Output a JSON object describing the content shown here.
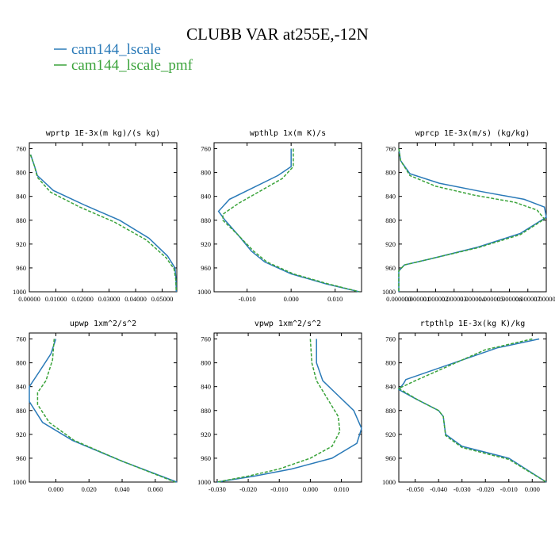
{
  "title": "CLUBB VAR at255E,-12N",
  "legend": [
    {
      "name": "cam144_lscale",
      "color": "#2a7ab8"
    },
    {
      "name": "cam144_lscale_pmf",
      "color": "#3aa33a"
    }
  ],
  "chart_data": [
    {
      "type": "line",
      "title": "wprtp  1E-3x(m kg)/(s kg)",
      "xlim": [
        0,
        0.0555
      ],
      "ylim": [
        1000,
        750
      ],
      "yticks": [
        "760",
        "800",
        "840",
        "880",
        "920",
        "960",
        "1000"
      ],
      "xticks": [
        {
          "v": 0.0,
          "label": "0.00000"
        },
        {
          "v": 0.01,
          "label": "0.01000"
        },
        {
          "v": 0.02,
          "label": "0.02000"
        },
        {
          "v": 0.03,
          "label": "0.03000"
        },
        {
          "v": 0.04,
          "label": "0.04000"
        },
        {
          "v": 0.05,
          "label": "0.05000"
        }
      ],
      "series": [
        {
          "name": "cam144_lscale",
          "x": [
            0.0005,
            0.002,
            0.003,
            0.009,
            0.021,
            0.034,
            0.045,
            0.052,
            0.0548,
            0.0552,
            0.0553
          ],
          "y": [
            770,
            790,
            805,
            830,
            855,
            880,
            910,
            940,
            960,
            980,
            1000
          ]
        },
        {
          "name": "cam144_lscale_pmf",
          "x": [
            0.0004,
            0.002,
            0.003,
            0.008,
            0.019,
            0.032,
            0.044,
            0.0515,
            0.0545,
            0.0551,
            0.0553
          ],
          "y": [
            770,
            790,
            808,
            833,
            858,
            883,
            913,
            943,
            962,
            980,
            1000
          ]
        }
      ]
    },
    {
      "type": "line",
      "title": "wpthlp  1x(m K)/s",
      "xlim": [
        -0.0175,
        0.016
      ],
      "ylim": [
        1000,
        750
      ],
      "yticks": [
        "760",
        "800",
        "840",
        "880",
        "920",
        "960",
        "1000"
      ],
      "xticks": [
        {
          "v": -0.01,
          "label": "-0.010"
        },
        {
          "v": 0.0,
          "label": "0.000"
        },
        {
          "v": 0.01,
          "label": "0.010"
        }
      ],
      "series": [
        {
          "name": "cam144_lscale",
          "x": [
            0.0,
            0.0,
            -0.003,
            -0.014,
            -0.0165,
            -0.015,
            -0.012,
            -0.009,
            -0.006,
            0.0,
            0.008,
            0.0155
          ],
          "y": [
            760,
            790,
            805,
            845,
            865,
            880,
            905,
            932,
            950,
            970,
            987,
            1000
          ]
        },
        {
          "name": "cam144_lscale_pmf",
          "x": [
            0.0005,
            0.0005,
            -0.002,
            -0.012,
            -0.0155,
            -0.0155,
            -0.012,
            -0.0085,
            -0.0055,
            0.0005,
            0.0085,
            0.0155
          ],
          "y": [
            760,
            790,
            810,
            852,
            870,
            880,
            905,
            932,
            950,
            970,
            987,
            1000
          ]
        }
      ]
    },
    {
      "type": "line",
      "title": "wprcp  1E-3x(m/s) (kg/kg)",
      "xlim": [
        0,
        8e-06
      ],
      "ylim": [
        1000,
        750
      ],
      "yticks": [
        "760",
        "800",
        "840",
        "880",
        "920",
        "960",
        "1000"
      ],
      "xticks": [
        {
          "v": 0,
          "label": "0.000000"
        },
        {
          "v": 1e-06,
          "label": "0.000001"
        },
        {
          "v": 2e-06,
          "label": "0.000002"
        },
        {
          "v": 3e-06,
          "label": "0.000003"
        },
        {
          "v": 4e-06,
          "label": "0.000004"
        },
        {
          "v": 5e-06,
          "label": "0.000005"
        },
        {
          "v": 6e-06,
          "label": "0.000006"
        },
        {
          "v": 7e-06,
          "label": "0.000007"
        },
        {
          "v": 8e-06,
          "label": "0.000008"
        }
      ],
      "series": [
        {
          "name": "cam144_lscale",
          "x": [
            0,
            1e-07,
            6e-07,
            2.2e-06,
            4.5e-06,
            6.8e-06,
            7.9e-06,
            8e-06,
            6.6e-06,
            4.3e-06,
            1.7e-06,
            3e-07,
            0,
            0
          ],
          "y": [
            760,
            780,
            802,
            818,
            832,
            845,
            858,
            875,
            902,
            925,
            945,
            955,
            965,
            1000
          ]
        },
        {
          "name": "cam144_lscale_pmf",
          "x": [
            0,
            1e-07,
            6e-07,
            2e-06,
            4.1e-06,
            6.3e-06,
            7.5e-06,
            7.9e-06,
            6.6e-06,
            4.3e-06,
            1.7e-06,
            3e-07,
            0,
            0
          ],
          "y": [
            760,
            780,
            805,
            823,
            838,
            850,
            863,
            878,
            904,
            926,
            945,
            955,
            965,
            1000
          ]
        }
      ]
    },
    {
      "type": "line",
      "title": "upwp  1xm^2/s^2",
      "xlim": [
        -0.016,
        0.073
      ],
      "ylim": [
        1000,
        750
      ],
      "yticks": [
        "760",
        "800",
        "840",
        "880",
        "920",
        "960",
        "1000"
      ],
      "xticks": [
        {
          "v": 0.0,
          "label": "0.000"
        },
        {
          "v": 0.02,
          "label": "0.020"
        },
        {
          "v": 0.04,
          "label": "0.040"
        },
        {
          "v": 0.06,
          "label": "0.060"
        }
      ],
      "series": [
        {
          "name": "cam144_lscale",
          "x": [
            0.0,
            -0.003,
            -0.01,
            -0.016,
            -0.016,
            -0.008,
            0.01,
            0.04,
            0.073
          ],
          "y": [
            760,
            785,
            815,
            840,
            865,
            900,
            930,
            965,
            1000
          ]
        },
        {
          "name": "cam144_lscale_pmf",
          "x": [
            -0.001,
            -0.002,
            -0.006,
            -0.011,
            -0.011,
            -0.004,
            0.011,
            0.04,
            0.072
          ],
          "y": [
            760,
            795,
            830,
            850,
            870,
            900,
            930,
            965,
            1000
          ]
        }
      ]
    },
    {
      "type": "line",
      "title": "vpwp  1xm^2/s^2",
      "xlim": [
        -0.031,
        0.0165
      ],
      "ylim": [
        1000,
        750
      ],
      "yticks": [
        "760",
        "800",
        "840",
        "880",
        "920",
        "960",
        "1000"
      ],
      "xticks": [
        {
          "v": -0.03,
          "label": "-0.030"
        },
        {
          "v": -0.02,
          "label": "-0.020"
        },
        {
          "v": -0.01,
          "label": "-0.010"
        },
        {
          "v": 0.0,
          "label": "0.000"
        },
        {
          "v": 0.01,
          "label": "0.010"
        }
      ],
      "series": [
        {
          "name": "cam144_lscale",
          "x": [
            0.002,
            0.002,
            0.004,
            0.009,
            0.014,
            0.0165,
            0.015,
            0.007,
            -0.006,
            -0.018,
            -0.03
          ],
          "y": [
            760,
            800,
            830,
            855,
            880,
            910,
            935,
            960,
            978,
            990,
            1000
          ]
        },
        {
          "name": "cam144_lscale_pmf",
          "x": [
            0.0,
            0.0005,
            0.002,
            0.0055,
            0.009,
            0.0095,
            0.007,
            0.0,
            -0.01,
            -0.02,
            -0.03
          ],
          "y": [
            760,
            800,
            830,
            860,
            890,
            915,
            940,
            960,
            978,
            990,
            1000
          ]
        }
      ]
    },
    {
      "type": "line",
      "title": "rtpthlp  1E-3x(kg K)/kg",
      "xlim": [
        -0.057,
        0.006
      ],
      "ylim": [
        1000,
        750
      ],
      "yticks": [
        "760",
        "800",
        "840",
        "880",
        "920",
        "960",
        "1000"
      ],
      "xticks": [
        {
          "v": -0.05,
          "label": "-0.050"
        },
        {
          "v": -0.04,
          "label": "-0.040"
        },
        {
          "v": -0.03,
          "label": "-0.030"
        },
        {
          "v": -0.02,
          "label": "-0.020"
        },
        {
          "v": -0.01,
          "label": "-0.010"
        },
        {
          "v": 0.0,
          "label": "0.000"
        }
      ],
      "series": [
        {
          "name": "cam144_lscale",
          "x": [
            0.003,
            -0.015,
            -0.054,
            -0.055,
            -0.057,
            -0.05,
            -0.04,
            -0.038,
            -0.037,
            -0.03,
            -0.01,
            0.006
          ],
          "y": [
            760,
            775,
            828,
            835,
            845,
            860,
            880,
            890,
            920,
            940,
            960,
            1000
          ]
        },
        {
          "name": "cam144_lscale_pmf",
          "x": [
            0.0,
            -0.02,
            -0.05,
            -0.057,
            -0.054,
            -0.049,
            -0.04,
            -0.038,
            -0.037,
            -0.03,
            -0.01,
            0.006
          ],
          "y": [
            760,
            778,
            830,
            843,
            850,
            862,
            880,
            890,
            922,
            942,
            962,
            1000
          ]
        }
      ]
    }
  ]
}
